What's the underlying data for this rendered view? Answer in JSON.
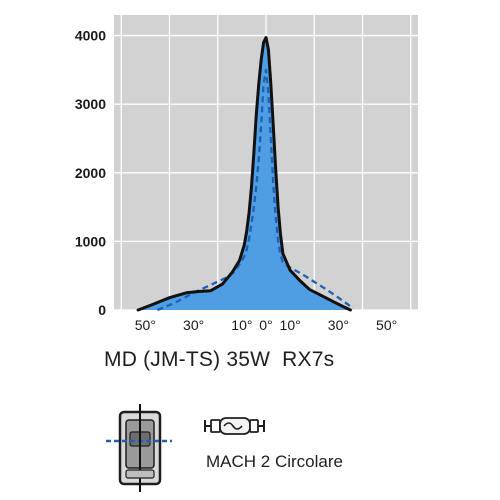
{
  "chart_data": {
    "type": "area",
    "xlabel": "",
    "ylabel": "",
    "xlim": [
      -63,
      63
    ],
    "ylim": [
      0,
      4300
    ],
    "grid": true,
    "x_tick_labels": [
      {
        "x": -50,
        "label": "50°"
      },
      {
        "x": -30,
        "label": "30°"
      },
      {
        "x": -10,
        "label": "10°"
      },
      {
        "x": 0,
        "label": "0°"
      },
      {
        "x": 10,
        "label": "10°"
      },
      {
        "x": 30,
        "label": "30°"
      },
      {
        "x": 50,
        "label": "50°"
      }
    ],
    "y_ticks": [
      0,
      1000,
      2000,
      3000,
      4000
    ],
    "x_grid": [
      -60,
      -40,
      -20,
      0,
      20,
      40,
      60
    ],
    "series": [
      {
        "style": "solid",
        "color": "#111111",
        "fill": "#4f9ee3",
        "points": [
          [
            -53,
            0
          ],
          [
            -47,
            80
          ],
          [
            -40,
            180
          ],
          [
            -33,
            250
          ],
          [
            -28,
            270
          ],
          [
            -23,
            280
          ],
          [
            -18,
            380
          ],
          [
            -14,
            550
          ],
          [
            -11,
            720
          ],
          [
            -9,
            950
          ],
          [
            -8,
            1150
          ],
          [
            -7,
            1420
          ],
          [
            -6,
            1800
          ],
          [
            -5,
            2300
          ],
          [
            -4,
            2850
          ],
          [
            -3,
            3300
          ],
          [
            -2,
            3650
          ],
          [
            -1,
            3900
          ],
          [
            0,
            3970
          ],
          [
            1,
            3800
          ],
          [
            2,
            3300
          ],
          [
            3,
            2700
          ],
          [
            4,
            2050
          ],
          [
            5,
            1500
          ],
          [
            6,
            1100
          ],
          [
            7,
            820
          ],
          [
            10,
            580
          ],
          [
            14,
            430
          ],
          [
            18,
            300
          ],
          [
            23,
            210
          ],
          [
            28,
            120
          ],
          [
            32,
            50
          ],
          [
            35,
            0
          ]
        ]
      },
      {
        "style": "dashed",
        "color": "#1f5fb5",
        "points": [
          [
            -45,
            0
          ],
          [
            -38,
            100
          ],
          [
            -30,
            250
          ],
          [
            -22,
            380
          ],
          [
            -16,
            480
          ],
          [
            -13,
            560
          ],
          [
            -10,
            720
          ],
          [
            -9,
            780
          ],
          [
            -8,
            880
          ],
          [
            -7,
            1040
          ],
          [
            -6,
            1250
          ],
          [
            -5,
            1500
          ],
          [
            -4,
            1800
          ],
          [
            -3,
            2200
          ],
          [
            -2,
            2700
          ],
          [
            -1,
            3300
          ],
          [
            0,
            3500
          ],
          [
            1,
            3150
          ],
          [
            2,
            2500
          ],
          [
            3,
            1850
          ],
          [
            4,
            1350
          ],
          [
            5,
            1000
          ],
          [
            6,
            800
          ],
          [
            7,
            700
          ],
          [
            9,
            640
          ],
          [
            12,
            580
          ],
          [
            16,
            500
          ],
          [
            20,
            410
          ],
          [
            25,
            300
          ],
          [
            30,
            180
          ],
          [
            34,
            80
          ],
          [
            36,
            20
          ]
        ]
      }
    ]
  },
  "caption": "MD (JM-TS) 35W  RX7s",
  "lamp_label": "MACH 2 Circolare",
  "colors": {
    "plot_bg": "#d2d2d2",
    "grid": "#ffffff",
    "fill": "#4f9ee3",
    "solid_line": "#111111",
    "dashed_line": "#1f5fb5"
  },
  "icons": {
    "fixture": "luminaire-front-icon",
    "lamp": "lamp-bulb-icon"
  }
}
